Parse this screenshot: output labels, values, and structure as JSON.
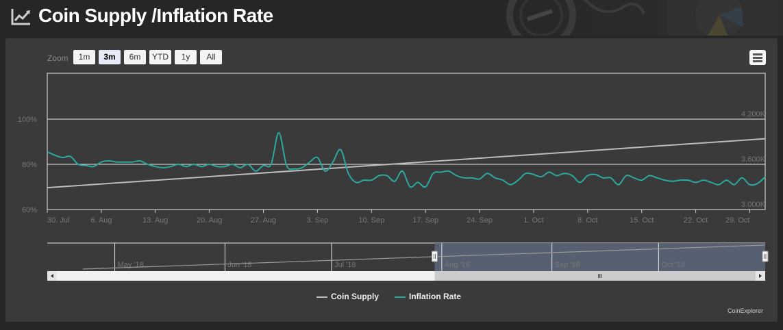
{
  "header": {
    "title": "Coin Supply /Inflation Rate",
    "icon": "line-chart-icon"
  },
  "range_selector": {
    "zoom_label": "Zoom",
    "buttons": [
      "1m",
      "3m",
      "6m",
      "YTD",
      "1y",
      "All"
    ],
    "selected": "3m"
  },
  "navigator": {
    "month_labels": [
      "May '18",
      "Jun '18",
      "Jul '18",
      "Aug '18",
      "Sep '18",
      "Oct '18"
    ],
    "selection_range": [
      "2018-07-30",
      "2018-10-31"
    ]
  },
  "credits": "CoinExplorer",
  "colors": {
    "coin_supply": "#bdbdbd",
    "inflation_rate": "#2aa9a0",
    "panel_bg": "#3a3a3a",
    "navigator_selection": "#5a6577"
  },
  "chart_data": {
    "type": "line",
    "x_tick_labels": [
      "30. Jul",
      "6. Aug",
      "13. Aug",
      "20. Aug",
      "27. Aug",
      "3. Sep",
      "10. Sep",
      "17. Sep",
      "24. Sep",
      "1. Oct",
      "8. Oct",
      "15. Oct",
      "22. Oct",
      "29. Oct"
    ],
    "y_left_tick_labels": [
      "60%",
      "80%",
      "100%"
    ],
    "y_right_tick_labels": [
      "3.000K",
      "3.600K",
      "4.200K"
    ],
    "y_left_range": [
      60,
      100
    ],
    "y_right_range": [
      3000,
      4200
    ],
    "x_range": [
      "2018-07-30",
      "2018-10-31"
    ],
    "grid": true,
    "legend_position": "bottom-center",
    "series": [
      {
        "name": "Coin Supply",
        "axis": "right",
        "x": [
          "2018-07-30",
          "2018-10-31"
        ],
        "values": [
          3290,
          3940
        ]
      },
      {
        "name": "Inflation Rate",
        "axis": "left",
        "x": [
          "2018-07-30",
          "2018-07-31",
          "2018-08-01",
          "2018-08-02",
          "2018-08-03",
          "2018-08-04",
          "2018-08-05",
          "2018-08-06",
          "2018-08-07",
          "2018-08-08",
          "2018-08-09",
          "2018-08-10",
          "2018-08-11",
          "2018-08-12",
          "2018-08-13",
          "2018-08-14",
          "2018-08-15",
          "2018-08-16",
          "2018-08-17",
          "2018-08-18",
          "2018-08-19",
          "2018-08-20",
          "2018-08-21",
          "2018-08-22",
          "2018-08-23",
          "2018-08-24",
          "2018-08-25",
          "2018-08-26",
          "2018-08-27",
          "2018-08-28",
          "2018-08-29",
          "2018-08-30",
          "2018-08-31",
          "2018-09-01",
          "2018-09-02",
          "2018-09-03",
          "2018-09-04",
          "2018-09-05",
          "2018-09-06",
          "2018-09-07",
          "2018-09-08",
          "2018-09-09",
          "2018-09-10",
          "2018-09-11",
          "2018-09-12",
          "2018-09-13",
          "2018-09-14",
          "2018-09-15",
          "2018-09-16",
          "2018-09-17",
          "2018-09-18",
          "2018-09-19",
          "2018-09-20",
          "2018-09-21",
          "2018-09-22",
          "2018-09-23",
          "2018-09-24",
          "2018-09-25",
          "2018-09-26",
          "2018-09-27",
          "2018-09-28",
          "2018-09-29",
          "2018-09-30",
          "2018-10-01",
          "2018-10-02",
          "2018-10-03",
          "2018-10-04",
          "2018-10-05",
          "2018-10-06",
          "2018-10-07",
          "2018-10-08",
          "2018-10-09",
          "2018-10-10",
          "2018-10-11",
          "2018-10-12",
          "2018-10-13",
          "2018-10-14",
          "2018-10-15",
          "2018-10-16",
          "2018-10-17",
          "2018-10-18",
          "2018-10-19",
          "2018-10-20",
          "2018-10-21",
          "2018-10-22",
          "2018-10-23",
          "2018-10-24",
          "2018-10-25",
          "2018-10-26",
          "2018-10-27",
          "2018-10-28",
          "2018-10-29",
          "2018-10-30",
          "2018-10-31"
        ],
        "values": [
          85.5,
          84,
          83,
          83.5,
          80,
          79.5,
          79,
          81,
          81.5,
          81,
          81,
          81,
          81.5,
          80,
          79,
          78.5,
          79,
          80,
          79,
          80,
          79,
          80,
          79,
          79,
          80,
          78.5,
          80,
          77,
          79.5,
          80,
          94,
          79.5,
          78,
          78.5,
          81,
          83,
          77,
          81,
          86.5,
          76,
          72,
          73,
          73,
          75,
          75,
          72.5,
          77,
          70,
          72,
          70,
          76,
          76.5,
          77,
          75,
          74,
          74,
          73.5,
          76,
          74,
          73,
          71,
          73,
          76,
          75.5,
          74.5,
          76.5,
          75,
          76,
          75,
          72,
          75,
          75.5,
          74,
          74,
          71,
          75,
          74,
          73,
          75,
          74,
          73,
          72.5,
          73,
          73,
          72,
          73,
          72,
          71,
          73,
          71,
          74,
          71,
          71.5,
          74.5
        ]
      }
    ]
  }
}
